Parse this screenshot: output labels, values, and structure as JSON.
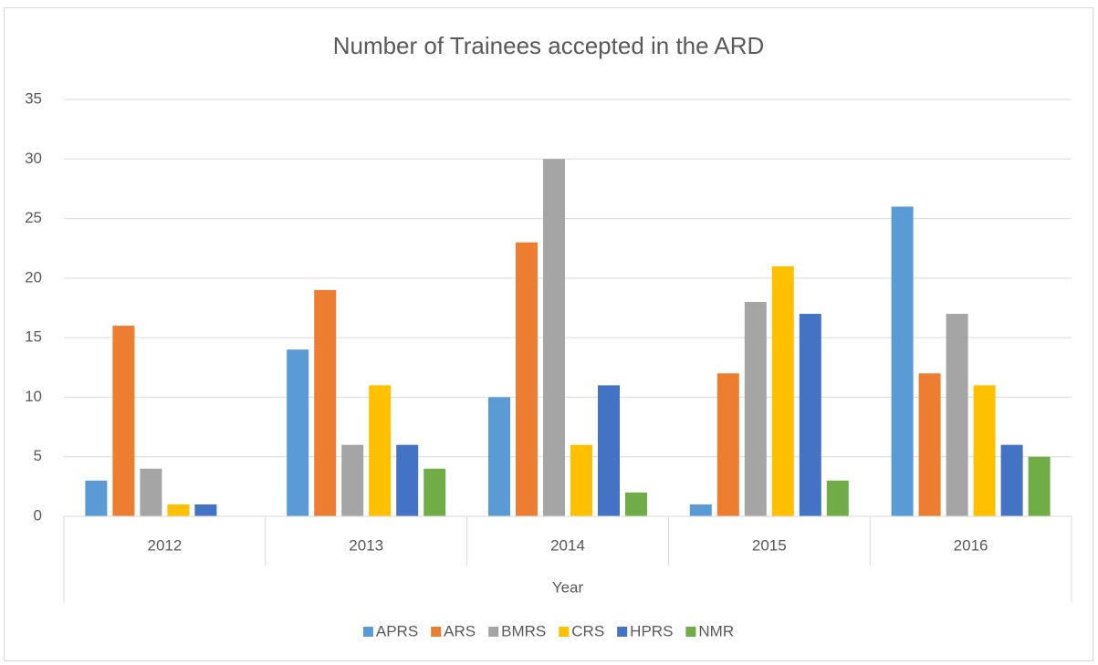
{
  "chart_data": {
    "type": "bar",
    "title": "Number of Trainees accepted in the ARD",
    "x_label": "Year",
    "categories": [
      "2012",
      "2013",
      "2014",
      "2015",
      "2016"
    ],
    "series": [
      {
        "name": "APRS",
        "color": "#5b9bd5",
        "values": [
          3,
          14,
          10,
          1,
          26
        ]
      },
      {
        "name": "ARS",
        "color": "#ed7d31",
        "values": [
          16,
          19,
          23,
          12,
          12
        ]
      },
      {
        "name": "BMRS",
        "color": "#a5a5a5",
        "values": [
          4,
          6,
          30,
          18,
          17
        ]
      },
      {
        "name": "CRS",
        "color": "#ffc000",
        "values": [
          1,
          11,
          6,
          21,
          11
        ]
      },
      {
        "name": "HPRS",
        "color": "#4472c4",
        "values": [
          1,
          6,
          11,
          17,
          6
        ]
      },
      {
        "name": "NMR",
        "color": "#70ad47",
        "values": [
          0,
          4,
          2,
          3,
          5
        ]
      }
    ],
    "ylim": [
      0,
      35
    ],
    "yticks": [
      0,
      5,
      10,
      15,
      20,
      25,
      30,
      35
    ],
    "grid": true,
    "legend": "bottom"
  }
}
